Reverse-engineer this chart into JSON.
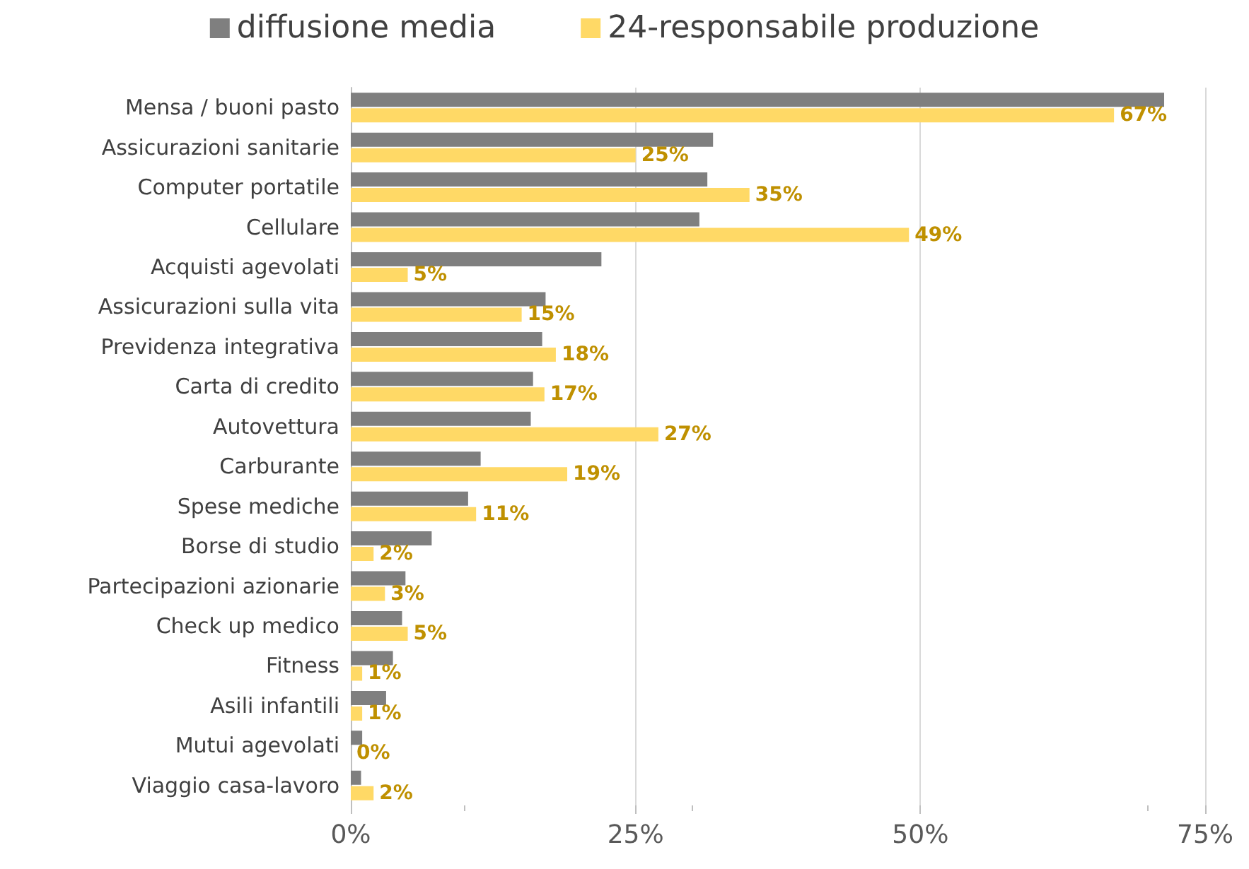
{
  "chart_data": {
    "type": "bar",
    "orientation": "horizontal",
    "categories": [
      "Mensa / buoni pasto",
      "Assicurazioni sanitarie",
      "Computer portatile",
      "Cellulare",
      "Acquisti agevolati",
      "Assicurazioni sulla vita",
      "Previdenza integrativa",
      "Carta di credito",
      "Autovettura",
      "Carburante",
      "Spese mediche",
      "Borse di studio",
      "Partecipazioni azionarie",
      "Check up medico",
      "Fitness",
      "Asili infantili",
      "Mutui agevolati",
      "Viaggio casa-lavoro"
    ],
    "series": [
      {
        "name": "diffusione media",
        "color": "#7f7f7f",
        "values": [
          71.4,
          31.8,
          31.3,
          30.6,
          22,
          17.1,
          16.8,
          16,
          15.8,
          11.4,
          10.3,
          7.1,
          4.8,
          4.5,
          3.7,
          3.1,
          1,
          0.9
        ]
      },
      {
        "name": "24-responsabile produzione",
        "color": "#ffd966",
        "values": [
          67,
          25,
          35,
          49,
          5,
          15,
          18,
          17,
          27,
          19,
          11,
          2,
          3,
          5,
          1,
          1,
          0,
          2
        ],
        "value_labels": [
          "67%",
          "25%",
          "35%",
          "49%",
          "5%",
          "15%",
          "18%",
          "17%",
          "27%",
          "19%",
          "11%",
          "2%",
          "3%",
          "5%",
          "1%",
          "1%",
          "0%",
          "2%"
        ]
      }
    ],
    "xlim": [
      0,
      75
    ],
    "xticks": [
      {
        "value": 0,
        "label": "0%"
      },
      {
        "value": 25,
        "label": "25%"
      },
      {
        "value": 50,
        "label": "50%"
      },
      {
        "value": 75,
        "label": "75%"
      }
    ],
    "grid": "x",
    "legend": "top"
  }
}
